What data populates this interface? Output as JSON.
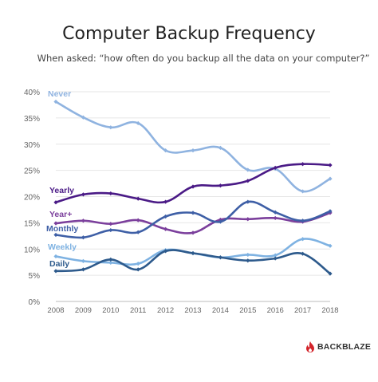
{
  "page": {
    "title": "Computer Backup Frequency",
    "subtitle": "When asked: “how often do you backup all the data on your computer?”"
  },
  "brand": {
    "name": "BACKBLAZE",
    "icon": "flame-icon",
    "color": "#d3232a"
  },
  "chart_data": {
    "type": "line",
    "title": "Computer Backup Frequency",
    "subtitle": "When asked: “how often do you backup all the data on your computer?”",
    "x": [
      "2008",
      "2009",
      "2010",
      "2011",
      "2012",
      "2013",
      "2014",
      "2015",
      "2016",
      "2017",
      "2018"
    ],
    "y_ticks": [
      "0%",
      "5%",
      "10%",
      "15%",
      "20%",
      "25%",
      "30%",
      "35%",
      "40%"
    ],
    "ylim": [
      0,
      40
    ],
    "y_unit": "%",
    "grid": "horizontal",
    "legend": "inline labels at left",
    "series": [
      {
        "name": "Never",
        "color": "#8fb3e0",
        "values": [
          38.1,
          35.1,
          33.2,
          34.0,
          28.8,
          28.8,
          29.3,
          25.1,
          25.3,
          21.0,
          23.4
        ]
      },
      {
        "name": "Yearly",
        "color": "#4a1a86",
        "values": [
          18.9,
          20.4,
          20.6,
          19.6,
          19.0,
          21.9,
          22.1,
          23.0,
          25.5,
          26.2,
          26.0
        ]
      },
      {
        "name": "Year+",
        "color": "#7b3f9c",
        "values": [
          14.9,
          15.4,
          14.8,
          15.5,
          13.8,
          13.1,
          15.6,
          15.7,
          15.9,
          15.2,
          16.9
        ]
      },
      {
        "name": "Monthly",
        "color": "#3e5fa6",
        "values": [
          12.7,
          12.2,
          13.6,
          13.2,
          16.2,
          16.9,
          15.2,
          19.0,
          17.0,
          15.4,
          17.2
        ]
      },
      {
        "name": "Weekly",
        "color": "#7eb2e2",
        "values": [
          8.6,
          7.7,
          7.4,
          7.2,
          9.8,
          9.2,
          8.4,
          8.9,
          8.8,
          11.9,
          10.6
        ]
      },
      {
        "name": "Daily",
        "color": "#2d5a8c",
        "values": [
          5.8,
          6.1,
          8.0,
          6.1,
          9.6,
          9.2,
          8.4,
          7.8,
          8.2,
          9.1,
          5.3
        ]
      }
    ]
  }
}
